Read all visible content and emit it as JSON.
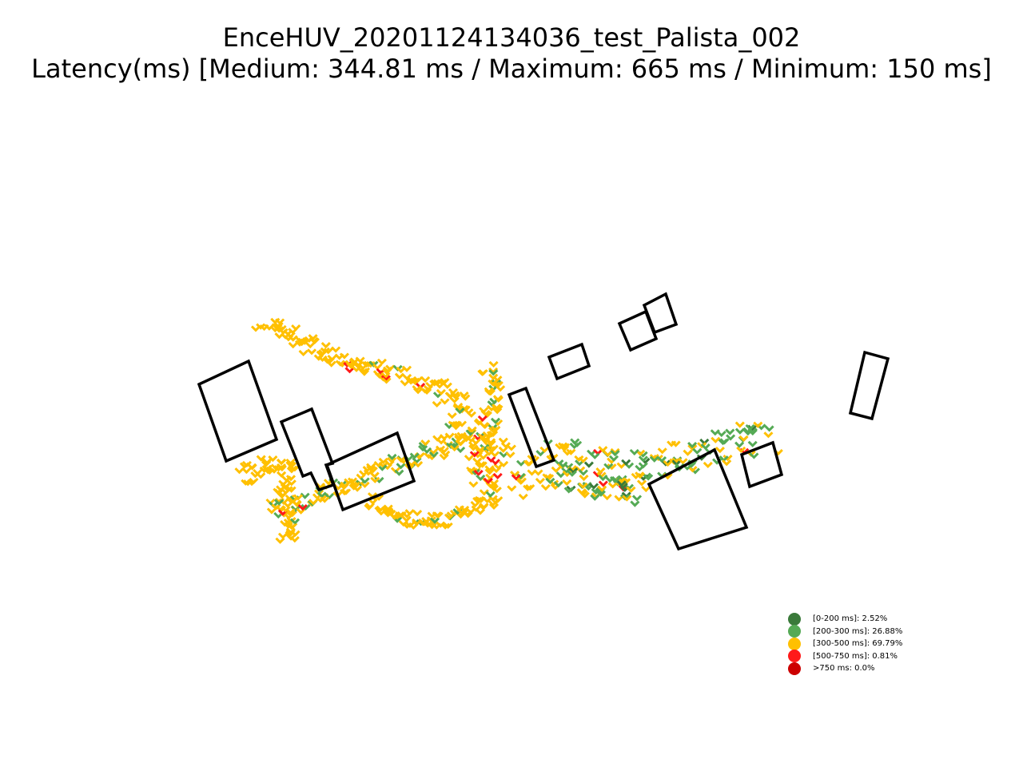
{
  "title": {
    "line1": "EnceHUV_20201124134036_test_Palista_002",
    "line2": "Latency(ms) [Medium: 344.81 ms / Maximum: 665 ms / Minimum: 150 ms]"
  },
  "legend": [
    {
      "label": "[0-200 ms]: 2.52%",
      "color": "#3a7a3a"
    },
    {
      "label": "[200-300 ms]: 26.88%",
      "color": "#55aa55"
    },
    {
      "label": "[300-500 ms]: 69.79%",
      "color": "#ffc000"
    },
    {
      "label": "[500-750 ms]: 0.81%",
      "color": "#ff1a1a"
    },
    {
      "label": ">750 ms: 0.0%",
      "color": "#cc0000"
    }
  ],
  "colors": {
    "lt200": "#3a7a3a",
    "r200_300": "#55aa55",
    "r300_500": "#ffc000",
    "r500_750": "#ff1a1a",
    "gt750": "#cc0000",
    "building_outline": "#000000"
  }
}
